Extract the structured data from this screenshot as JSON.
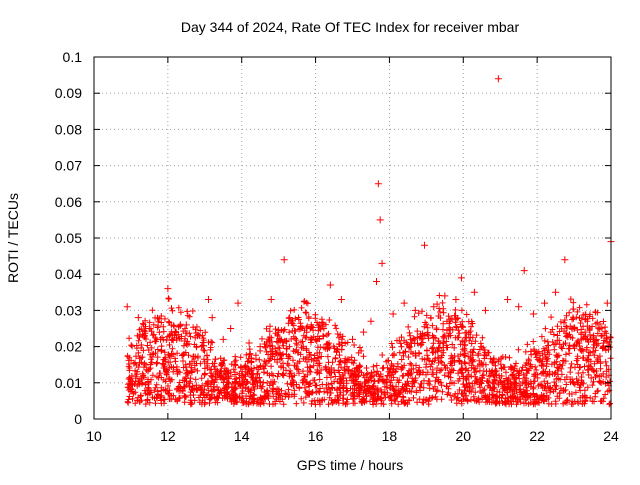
{
  "chart_data": {
    "type": "scatter",
    "title": "Day 344 of 2024, Rate Of TEC Index for receiver mbar",
    "xlabel": "GPS time / hours",
    "ylabel": "ROTI / TECUs",
    "xlim": [
      10,
      24
    ],
    "ylim": [
      0,
      0.1
    ],
    "xticks": [
      "10",
      "12",
      "14",
      "16",
      "18",
      "20",
      "22",
      "24"
    ],
    "yticks": [
      "0",
      "0.01",
      "0.02",
      "0.03",
      "0.04",
      "0.05",
      "0.06",
      "0.07",
      "0.08",
      "0.09",
      "0.1"
    ],
    "grid": true,
    "marker": "+",
    "color": "#ff0000",
    "series": [
      {
        "name": "ROTI",
        "x": [
          10.9,
          11.2,
          11.5,
          11.8,
          12.0,
          12.2,
          12.5,
          12.8,
          13.1,
          13.2,
          13.5,
          13.7,
          13.9,
          14.0,
          14.2,
          14.5,
          14.8,
          15.0,
          15.15,
          15.3,
          15.6,
          15.9,
          16.1,
          16.4,
          16.7,
          17.0,
          17.3,
          17.5,
          17.65,
          17.7,
          17.75,
          17.8,
          18.1,
          18.4,
          18.7,
          18.95,
          19.2,
          19.5,
          19.8,
          19.95,
          20.3,
          20.6,
          20.95,
          21.2,
          21.5,
          21.65,
          21.9,
          22.2,
          22.5,
          22.75,
          23.0,
          23.3,
          23.6,
          23.9,
          24.0
        ],
        "y": [
          0.031,
          0.028,
          0.025,
          0.022,
          0.036,
          0.024,
          0.026,
          0.023,
          0.033,
          0.028,
          0.022,
          0.025,
          0.032,
          0.012,
          0.021,
          0.02,
          0.033,
          0.024,
          0.044,
          0.028,
          0.025,
          0.022,
          0.026,
          0.037,
          0.033,
          0.022,
          0.024,
          0.027,
          0.038,
          0.065,
          0.055,
          0.043,
          0.029,
          0.032,
          0.03,
          0.048,
          0.031,
          0.034,
          0.033,
          0.039,
          0.035,
          0.03,
          0.094,
          0.033,
          0.031,
          0.041,
          0.029,
          0.032,
          0.035,
          0.044,
          0.025,
          0.024,
          0.022,
          0.032,
          0.049
        ]
      }
    ]
  }
}
